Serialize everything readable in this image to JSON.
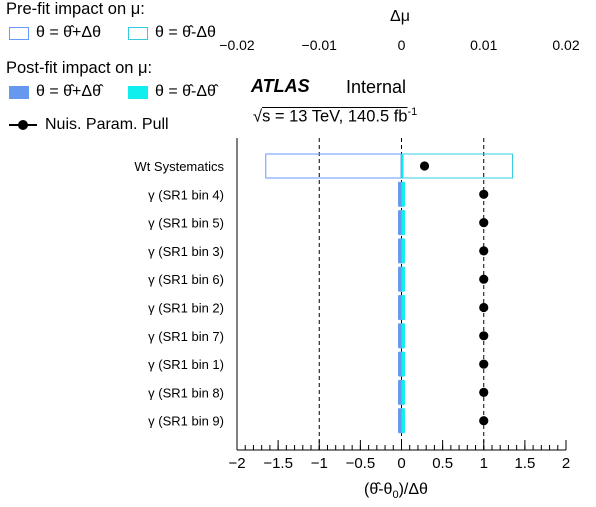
{
  "legend": {
    "prefit_title": "Pre-fit impact on  μ:",
    "prefit_up": "θ = θ̂+Δθ",
    "prefit_down": "θ = θ̂-Δθ",
    "postfit_title": "Post-fit impact on  μ:",
    "postfit_up": "θ = θ̂+Δθ̂",
    "postfit_down": "θ = θ̂-Δθ̂",
    "pull_label": "Nuis. Param. Pull"
  },
  "labels": {
    "atlas": "ATLAS",
    "internal": "Internal",
    "lumi_prefix": "s = 13 TeV, 140.5 fb",
    "lumi_sup": "-1",
    "bottom_axis_title": "(θ̂-θ",
    "bottom_axis_title_sub": "0",
    "bottom_axis_title_end": ")/Δθ",
    "top_axis_title": "Δμ"
  },
  "colors": {
    "prefit_up": "#6699ff",
    "prefit_down": "#33ccdd",
    "postfit_up": "#6699ee",
    "postfit_down": "#11eeee",
    "pull": "#000000"
  },
  "chart_data": {
    "type": "ranking",
    "parameters": [
      "Wt Systematics",
      "γ (SR1 bin 4)",
      "γ (SR1 bin 5)",
      "γ (SR1 bin 3)",
      "γ (SR1 bin 6)",
      "γ (SR1 bin 2)",
      "γ (SR1 bin 7)",
      "γ (SR1 bin 1)",
      "γ (SR1 bin 8)",
      "γ (SR1 bin 9)"
    ],
    "pulls": [
      0.28,
      1.0,
      1.0,
      1.0,
      1.0,
      1.0,
      1.0,
      1.0,
      1.0,
      1.0
    ],
    "pull_errors": [
      0,
      0,
      0,
      0,
      0,
      0,
      0,
      0,
      0,
      0
    ],
    "impact_prefit_up": [
      -0.0165,
      -0.0003,
      -0.0003,
      -0.0003,
      -0.0003,
      -0.0003,
      -0.0003,
      -0.0003,
      -0.0003,
      -0.0003
    ],
    "impact_prefit_down": [
      0.0135,
      0.0003,
      0.0003,
      0.0003,
      0.0003,
      0.0003,
      0.0003,
      0.0003,
      0.0003,
      0.0003
    ],
    "impact_postfit_up": [
      0,
      -0.0003,
      -0.0003,
      -0.0003,
      -0.0003,
      -0.0003,
      -0.0003,
      -0.0003,
      -0.0003,
      -0.0003
    ],
    "impact_postfit_down": [
      0,
      0.0003,
      0.0003,
      0.0003,
      0.0003,
      0.0003,
      0.0003,
      0.0003,
      0.0003,
      0.0003
    ],
    "bottom_axis": {
      "range": [
        -2,
        2
      ],
      "ticks": [
        "−2",
        "−1.5",
        "−1",
        "−0.5",
        "0",
        "0.5",
        "1",
        "1.5",
        "2"
      ]
    },
    "top_axis": {
      "range": [
        -0.02,
        0.02
      ],
      "tick_values": [
        -0.02,
        -0.01,
        0,
        0.01,
        0.02
      ],
      "ticks": [
        "−0.02",
        "−0.01",
        "0",
        "0.01",
        "0.02"
      ]
    },
    "reference_lines": [
      -1,
      0,
      1
    ]
  }
}
